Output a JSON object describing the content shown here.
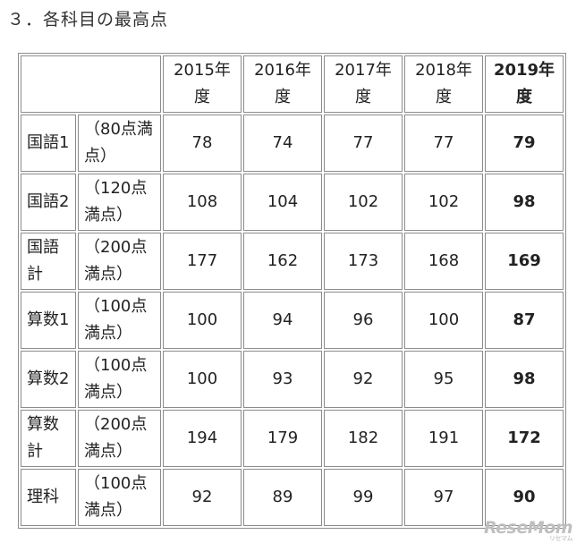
{
  "heading": "３．各科目の最高点",
  "table": {
    "header": [
      "",
      "2015年度",
      "2016年度",
      "2017年度",
      "2018年度",
      "2019年度"
    ],
    "rows": [
      {
        "subject": "国語1",
        "max": "（80点満点）",
        "values": [
          "78",
          "74",
          "77",
          "77",
          "79"
        ]
      },
      {
        "subject": "国語2",
        "max": "（120点満点）",
        "values": [
          "108",
          "104",
          "102",
          "102",
          "98"
        ]
      },
      {
        "subject": "国語計",
        "max": "（200点満点）",
        "values": [
          "177",
          "162",
          "173",
          "168",
          "169"
        ]
      },
      {
        "subject": "算数1",
        "max": "（100点満点）",
        "values": [
          "100",
          "94",
          "96",
          "100",
          "87"
        ]
      },
      {
        "subject": "算数2",
        "max": "（100点満点）",
        "values": [
          "100",
          "93",
          "92",
          "95",
          "98"
        ]
      },
      {
        "subject": "算数計",
        "max": "（200点満点）",
        "values": [
          "194",
          "179",
          "182",
          "191",
          "172"
        ]
      },
      {
        "subject": "理科",
        "max": "（100点満点）",
        "values": [
          "92",
          "89",
          "99",
          "97",
          "90"
        ]
      }
    ]
  },
  "watermark": "ReseMom",
  "watermark_ruby": "リセマム"
}
